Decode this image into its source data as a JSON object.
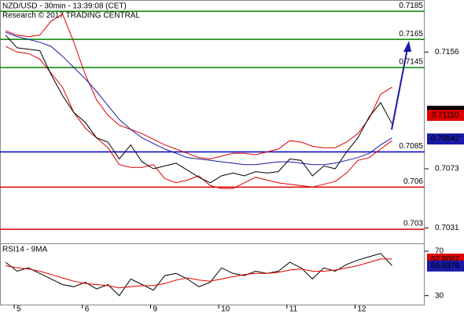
{
  "chart_data": [
    {
      "type": "line",
      "title": "NZD/USD - 30min - 13:39:08 (CET)",
      "subtitle": "Research © 2017 TRADING CENTRAL",
      "x": [
        -3,
        1,
        5,
        9,
        13,
        17,
        21,
        25,
        29,
        33,
        37,
        41,
        45,
        49,
        53,
        57,
        61,
        65,
        69,
        73,
        77,
        81,
        85,
        89,
        93,
        97,
        101,
        105,
        109,
        113,
        117,
        121,
        125,
        129,
        133
      ],
      "xlim": [
        -5,
        144.5
      ],
      "ylim": [
        0.702,
        0.7193
      ],
      "yticks": [
        0.7156,
        0.7073,
        0.7031
      ],
      "grid": false,
      "series": [
        {
          "color": "#e00000",
          "values": [
            0.7171,
            0.7168,
            0.7167,
            0.7168,
            0.7178,
            0.7183,
            0.7163,
            0.714,
            0.7122,
            0.7111,
            0.7104,
            0.7101,
            0.7098,
            0.7094,
            0.709,
            0.7087,
            0.7084,
            0.7081,
            0.708,
            0.7082,
            0.7084,
            0.7084,
            0.7083,
            0.7085,
            0.7087,
            0.7093,
            0.7092,
            0.7089,
            0.7088,
            0.7088,
            0.7092,
            0.7098,
            0.7109,
            0.7126,
            0.7131
          ]
        },
        {
          "color": "#e00000",
          "values": [
            0.716,
            0.7156,
            0.7155,
            0.7151,
            0.7141,
            0.7131,
            0.7113,
            0.7102,
            0.7095,
            0.7088,
            0.7076,
            0.7074,
            0.7074,
            0.7076,
            0.7066,
            0.7063,
            0.7065,
            0.7068,
            0.7061,
            0.7059,
            0.7059,
            0.7063,
            0.7067,
            0.7065,
            0.7063,
            0.7062,
            0.7061,
            0.706,
            0.7062,
            0.7064,
            0.707,
            0.7079,
            0.7081,
            0.7087,
            0.7093
          ]
        },
        {
          "color": "#1a1aa8",
          "values": [
            0.717,
            0.7167,
            0.7165,
            0.7163,
            0.716,
            0.7153,
            0.7145,
            0.7137,
            0.7128,
            0.7118,
            0.7108,
            0.7101,
            0.7095,
            0.7091,
            0.7087,
            0.7084,
            0.7081,
            0.708,
            0.7079,
            0.7078,
            0.7077,
            0.7076,
            0.7076,
            0.7077,
            0.7078,
            0.7078,
            0.7077,
            0.7076,
            0.7076,
            0.7077,
            0.7079,
            0.7081,
            0.7084,
            0.709,
            0.7095
          ]
        },
        {
          "color": "#000000",
          "values": [
            0.7168,
            0.7159,
            0.7158,
            0.7157,
            0.714,
            0.7125,
            0.7113,
            0.7106,
            0.7095,
            0.7092,
            0.708,
            0.709,
            0.7078,
            0.7073,
            0.7075,
            0.7077,
            0.7072,
            0.7067,
            0.7063,
            0.7068,
            0.707,
            0.7068,
            0.7071,
            0.707,
            0.7071,
            0.708,
            0.7079,
            0.7068,
            0.7075,
            0.7073,
            0.7085,
            0.7095,
            0.711,
            0.712,
            0.7105
          ]
        }
      ],
      "levels": [
        {
          "value": 0.7185,
          "color": "#008000"
        },
        {
          "value": 0.7165,
          "color": "#008000"
        },
        {
          "value": 0.7145,
          "color": "#008000"
        },
        {
          "value": 0.7085,
          "color": "#0000c0"
        },
        {
          "value": 0.706,
          "color": "#e00000"
        },
        {
          "value": 0.703,
          "color": "#e00000"
        }
      ],
      "price_tags": [
        {
          "value": 0.71139,
          "color": "#000000"
        },
        {
          "value": 0.7111,
          "label": "0.71110",
          "color": "#e00000"
        },
        {
          "value": 0.70942,
          "color": "#1a1aa8"
        }
      ]
    },
    {
      "type": "line",
      "title": "RSI14 - 9MA",
      "x": [
        -3,
        1,
        5,
        9,
        13,
        17,
        21,
        25,
        29,
        33,
        37,
        41,
        45,
        49,
        53,
        57,
        61,
        65,
        69,
        73,
        77,
        81,
        85,
        89,
        93,
        97,
        101,
        105,
        109,
        113,
        117,
        121,
        125,
        129,
        133
      ],
      "xlim": [
        -5,
        144.5
      ],
      "ylim": [
        22,
        77
      ],
      "yticks": [
        30,
        70
      ],
      "xticks": [
        {
          "value": 0,
          "label": "5"
        },
        {
          "value": 24,
          "label": "6"
        },
        {
          "value": 48,
          "label": "9"
        },
        {
          "value": 72,
          "label": "10"
        },
        {
          "value": 96,
          "label": "11"
        },
        {
          "value": 120,
          "label": "12"
        }
      ],
      "grid": false,
      "series": [
        {
          "color": "#000000",
          "values": [
            60,
            52,
            55,
            50,
            45,
            40,
            38,
            42,
            36,
            40,
            30,
            45,
            40,
            35,
            48,
            50,
            45,
            38,
            42,
            55,
            50,
            48,
            52,
            50,
            52,
            60,
            55,
            45,
            55,
            52,
            58,
            62,
            65,
            68,
            57
          ]
        },
        {
          "color": "#e00000",
          "values": [
            57,
            55,
            54,
            52,
            49,
            46,
            43,
            41,
            40,
            39,
            37,
            38,
            39,
            39,
            41,
            44,
            46,
            44,
            43,
            45,
            47,
            49,
            50,
            50,
            51,
            53,
            54,
            52,
            52,
            53,
            55,
            57,
            60,
            63,
            63
          ]
        }
      ],
      "price_tags": [
        {
          "value": 62.8067,
          "color": "#e00000"
        },
        {
          "value": 56.6379,
          "color": "#1a1aa8"
        }
      ]
    }
  ]
}
